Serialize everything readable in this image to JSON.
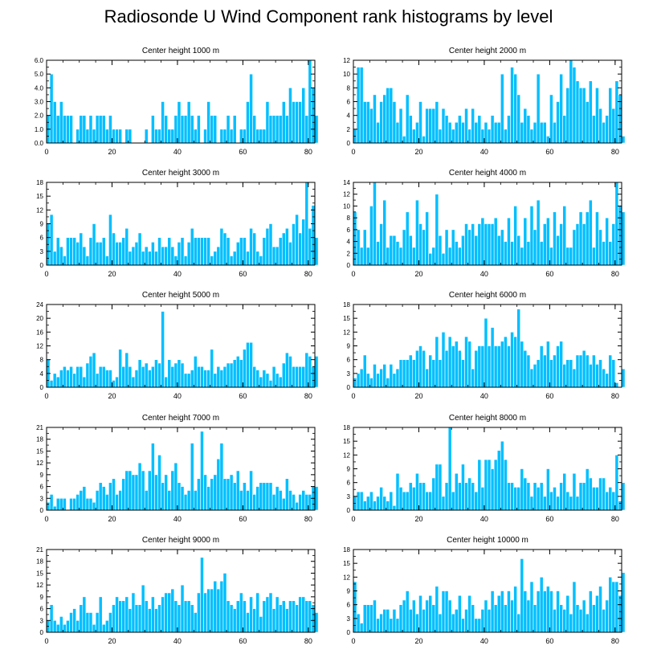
{
  "title": "Radiosonde U Wind Component rank histograms by level",
  "colors": {
    "bar": "#00BFFF",
    "bar_edge": "#ffffff",
    "axis": "#000000"
  },
  "chart_data": [
    {
      "type": "bar",
      "title": "Center height 1000 m",
      "xlim": [
        0,
        82
      ],
      "xticks": [
        0,
        20,
        40,
        60,
        80
      ],
      "ylim": [
        0,
        6
      ],
      "yticks": [
        "0.0",
        "1.0",
        "2.0",
        "3.0",
        "4.0",
        "5.0",
        "6.0"
      ],
      "values": [
        2,
        5,
        3,
        2,
        3,
        2,
        2,
        2,
        0,
        1,
        2,
        2,
        1,
        2,
        1,
        2,
        2,
        2,
        1,
        2,
        1,
        1,
        1,
        0,
        1,
        1,
        0,
        0,
        0,
        0,
        1,
        0,
        2,
        1,
        1,
        3,
        2,
        1,
        1,
        2,
        3,
        2,
        2,
        3,
        2,
        1,
        2,
        0,
        1,
        3,
        2,
        2,
        0,
        1,
        1,
        2,
        1,
        2,
        0,
        1,
        1,
        3,
        5,
        2,
        1,
        1,
        1,
        3,
        2,
        2,
        2,
        2,
        3,
        2,
        4,
        3,
        3,
        3,
        4,
        2,
        6,
        4,
        2
      ]
    },
    {
      "type": "bar",
      "title": "Center height 2000 m",
      "xlim": [
        0,
        82
      ],
      "xticks": [
        0,
        20,
        40,
        60,
        80
      ],
      "ylim": [
        0,
        12
      ],
      "yticks": [
        "0",
        "2",
        "4",
        "6",
        "8",
        "10",
        "12"
      ],
      "values": [
        2,
        11,
        11,
        6,
        6,
        5,
        7,
        3,
        6,
        7,
        8,
        8,
        6,
        3,
        5,
        1,
        7,
        4,
        2,
        3,
        6,
        1,
        5,
        5,
        5,
        6,
        2,
        5,
        4,
        3,
        2,
        3,
        4,
        3,
        5,
        2,
        5,
        3,
        4,
        2,
        3,
        2,
        4,
        3,
        3,
        10,
        2,
        4,
        11,
        10,
        7,
        3,
        5,
        4,
        2,
        3,
        10,
        3,
        3,
        1,
        7,
        3,
        6,
        10,
        4,
        8,
        12,
        11,
        9,
        8,
        8,
        6,
        9,
        4,
        8,
        5,
        3,
        4,
        8,
        5,
        9,
        7,
        1
      ]
    },
    {
      "type": "bar",
      "title": "Center height 3000 m",
      "xlim": [
        0,
        82
      ],
      "xticks": [
        0,
        20,
        40,
        60,
        80
      ],
      "ylim": [
        0,
        18
      ],
      "yticks": [
        "0",
        "3",
        "6",
        "9",
        "12",
        "15",
        "18"
      ],
      "values": [
        9,
        11,
        3,
        6,
        4,
        2,
        6,
        6,
        6,
        5,
        7,
        4,
        2,
        6,
        9,
        5,
        5,
        6,
        2,
        11,
        7,
        5,
        5,
        6,
        8,
        3,
        4,
        5,
        7,
        3,
        4,
        3,
        5,
        3,
        6,
        4,
        4,
        6,
        4,
        2,
        5,
        6,
        2,
        5,
        8,
        6,
        6,
        6,
        6,
        6,
        2,
        3,
        4,
        8,
        7,
        6,
        2,
        3,
        5,
        6,
        6,
        3,
        8,
        7,
        3,
        2,
        6,
        8,
        9,
        4,
        4,
        6,
        7,
        8,
        5,
        9,
        11,
        7,
        10,
        18,
        8,
        13,
        6
      ]
    },
    {
      "type": "bar",
      "title": "Center height 4000 m",
      "xlim": [
        0,
        82
      ],
      "xticks": [
        0,
        20,
        40,
        60,
        80
      ],
      "ylim": [
        0,
        14
      ],
      "yticks": [
        "0",
        "2",
        "4",
        "6",
        "8",
        "10",
        "12",
        "14"
      ],
      "values": [
        9,
        6,
        3,
        6,
        3,
        10,
        14,
        4,
        7,
        11,
        3,
        5,
        5,
        4,
        3,
        6,
        9,
        5,
        3,
        11,
        7,
        6,
        9,
        2,
        3,
        12,
        5,
        2,
        6,
        3,
        6,
        4,
        3,
        5,
        7,
        6,
        7,
        5,
        7,
        8,
        7,
        7,
        7,
        8,
        5,
        6,
        4,
        8,
        4,
        10,
        5,
        3,
        8,
        4,
        10,
        6,
        11,
        4,
        7,
        8,
        3,
        9,
        5,
        7,
        10,
        3,
        3,
        6,
        7,
        9,
        7,
        9,
        11,
        3,
        9,
        6,
        4,
        8,
        4,
        7,
        14,
        10,
        9
      ]
    },
    {
      "type": "bar",
      "title": "Center height 5000 m",
      "xlim": [
        0,
        82
      ],
      "xticks": [
        0,
        20,
        40,
        60,
        80
      ],
      "ylim": [
        0,
        24
      ],
      "yticks": [
        "0",
        "4",
        "8",
        "12",
        "16",
        "20",
        "24"
      ],
      "values": [
        8,
        2,
        4,
        3,
        5,
        6,
        5,
        6,
        4,
        6,
        6,
        3,
        7,
        9,
        10,
        4,
        6,
        6,
        5,
        5,
        2,
        3,
        11,
        6,
        10,
        6,
        3,
        5,
        8,
        6,
        7,
        5,
        6,
        8,
        7,
        22,
        3,
        8,
        6,
        7,
        8,
        7,
        4,
        4,
        5,
        9,
        6,
        6,
        5,
        5,
        11,
        4,
        6,
        5,
        6,
        7,
        7,
        8,
        9,
        8,
        11,
        13,
        13,
        6,
        5,
        3,
        5,
        4,
        2,
        6,
        4,
        3,
        7,
        10,
        9,
        6,
        6,
        6,
        6,
        10,
        9,
        6,
        9
      ]
    },
    {
      "type": "bar",
      "title": "Center height 6000 m",
      "xlim": [
        0,
        82
      ],
      "xticks": [
        0,
        20,
        40,
        60,
        80
      ],
      "ylim": [
        0,
        18
      ],
      "yticks": [
        "0",
        "3",
        "6",
        "9",
        "12",
        "15",
        "18"
      ],
      "values": [
        2,
        3,
        4,
        7,
        3,
        2,
        5,
        3,
        4,
        5,
        2,
        5,
        3,
        4,
        6,
        6,
        6,
        7,
        6,
        8,
        9,
        8,
        4,
        7,
        6,
        11,
        6,
        12,
        8,
        11,
        9,
        10,
        8,
        6,
        11,
        10,
        4,
        8,
        9,
        9,
        15,
        9,
        13,
        9,
        9,
        10,
        11,
        9,
        12,
        11,
        17,
        10,
        8,
        7,
        4,
        5,
        6,
        9,
        7,
        10,
        6,
        7,
        9,
        10,
        5,
        6,
        6,
        4,
        7,
        7,
        8,
        7,
        5,
        7,
        5,
        6,
        4,
        3,
        7,
        6,
        1,
        0,
        4
      ]
    },
    {
      "type": "bar",
      "title": "Center height 7000 m",
      "xlim": [
        0,
        82
      ],
      "xticks": [
        0,
        20,
        40,
        60,
        80
      ],
      "ylim": [
        0,
        21
      ],
      "yticks": [
        "0",
        "3",
        "6",
        "9",
        "12",
        "15",
        "18",
        "21"
      ],
      "values": [
        2,
        4,
        1,
        3,
        3,
        3,
        0,
        3,
        3,
        4,
        5,
        6,
        3,
        3,
        2,
        5,
        7,
        6,
        4,
        7,
        8,
        4,
        5,
        8,
        10,
        10,
        9,
        9,
        12,
        10,
        5,
        10,
        17,
        9,
        14,
        7,
        9,
        5,
        10,
        12,
        7,
        6,
        4,
        5,
        17,
        5,
        8,
        20,
        9,
        6,
        8,
        9,
        13,
        17,
        8,
        8,
        9,
        7,
        10,
        5,
        7,
        5,
        10,
        4,
        6,
        7,
        7,
        7,
        7,
        4,
        6,
        5,
        3,
        8,
        5,
        4,
        2,
        4,
        5,
        4,
        4,
        6,
        6
      ]
    },
    {
      "type": "bar",
      "title": "Center height 8000 m",
      "xlim": [
        0,
        82
      ],
      "xticks": [
        0,
        20,
        40,
        60,
        80
      ],
      "ylim": [
        0,
        18
      ],
      "yticks": [
        "0",
        "3",
        "6",
        "9",
        "12",
        "15",
        "18"
      ],
      "values": [
        3,
        4,
        4,
        2,
        3,
        4,
        2,
        3,
        5,
        3,
        2,
        4,
        1,
        8,
        5,
        4,
        4,
        6,
        5,
        8,
        6,
        6,
        4,
        4,
        7,
        10,
        10,
        3,
        6,
        18,
        4,
        8,
        6,
        10,
        6,
        7,
        6,
        4,
        11,
        5,
        11,
        11,
        9,
        11,
        13,
        15,
        11,
        6,
        6,
        5,
        5,
        9,
        7,
        6,
        3,
        6,
        5,
        6,
        3,
        9,
        4,
        5,
        3,
        6,
        8,
        4,
        3,
        8,
        3,
        6,
        6,
        9,
        7,
        5,
        5,
        7,
        7,
        4,
        5,
        4,
        12,
        2,
        6
      ]
    },
    {
      "type": "bar",
      "title": "Center height 9000 m",
      "xlim": [
        0,
        82
      ],
      "xticks": [
        0,
        20,
        40,
        60,
        80
      ],
      "ylim": [
        0,
        21
      ],
      "yticks": [
        "0",
        "3",
        "6",
        "9",
        "12",
        "15",
        "18",
        "21"
      ],
      "values": [
        3,
        7,
        3,
        2,
        4,
        2,
        3,
        5,
        6,
        3,
        7,
        9,
        5,
        5,
        2,
        5,
        9,
        2,
        3,
        5,
        7,
        9,
        8,
        8,
        9,
        6,
        10,
        7,
        7,
        12,
        8,
        6,
        9,
        6,
        7,
        9,
        10,
        10,
        11,
        8,
        7,
        12,
        8,
        8,
        7,
        5,
        10,
        19,
        10,
        11,
        11,
        13,
        11,
        13,
        15,
        8,
        7,
        6,
        8,
        10,
        8,
        5,
        9,
        6,
        10,
        4,
        8,
        9,
        10,
        6,
        9,
        7,
        8,
        6,
        8,
        8,
        7,
        9,
        9,
        8,
        8,
        7,
        5
      ]
    },
    {
      "type": "bar",
      "title": "Center height 10000 m",
      "xlim": [
        0,
        82
      ],
      "xticks": [
        0,
        20,
        40,
        60,
        80
      ],
      "ylim": [
        0,
        18
      ],
      "yticks": [
        "0",
        "3",
        "6",
        "9",
        "12",
        "15",
        "18"
      ],
      "values": [
        11,
        4,
        2,
        6,
        6,
        6,
        7,
        3,
        4,
        5,
        5,
        3,
        5,
        3,
        6,
        7,
        9,
        5,
        7,
        4,
        8,
        5,
        7,
        8,
        6,
        10,
        4,
        9,
        9,
        7,
        4,
        5,
        8,
        3,
        5,
        8,
        6,
        3,
        3,
        5,
        7,
        5,
        9,
        6,
        8,
        9,
        6,
        9,
        7,
        10,
        4,
        16,
        9,
        7,
        11,
        6,
        9,
        12,
        9,
        10,
        9,
        5,
        9,
        6,
        5,
        8,
        4,
        11,
        6,
        5,
        7,
        4,
        9,
        6,
        8,
        10,
        5,
        7,
        12,
        11,
        11,
        8,
        13
      ]
    }
  ]
}
